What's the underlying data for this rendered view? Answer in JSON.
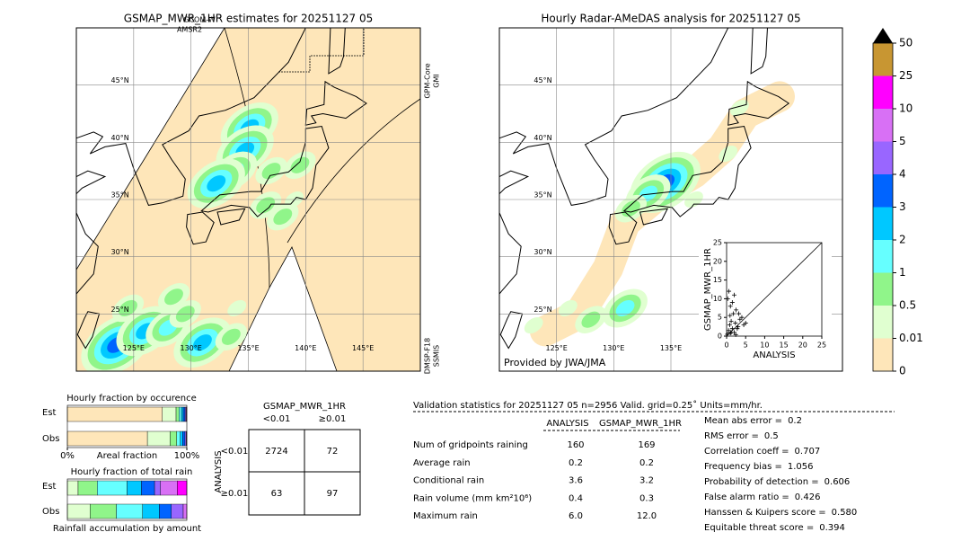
{
  "chart_data": [
    {
      "type": "map",
      "title": "GSMAP_MWR_1HR estimates for 20251127 05",
      "xlim": [
        120,
        150
      ],
      "ylim": [
        20,
        50
      ],
      "xticks": [
        {
          "value": 125,
          "label": "125°E"
        },
        {
          "value": 130,
          "label": "130°E"
        },
        {
          "value": 135,
          "label": "135°E"
        },
        {
          "value": 140,
          "label": "140°E"
        },
        {
          "value": 145,
          "label": "145°E"
        }
      ],
      "yticks": [
        {
          "value": 25,
          "label": "25°N"
        },
        {
          "value": 30,
          "label": "30°N"
        },
        {
          "value": 35,
          "label": "35°N"
        },
        {
          "value": 40,
          "label": "40°N"
        },
        {
          "value": 45,
          "label": "45°N"
        }
      ],
      "annotations": [
        "GCOM-W",
        "AMSR2",
        "GPM-Core",
        "GMI",
        "DMSP-F18",
        "SSMIS"
      ]
    },
    {
      "type": "map",
      "title": "Hourly Radar-AMeDAS analysis for 20251127 05",
      "xlim": [
        120,
        150
      ],
      "ylim": [
        20,
        50
      ],
      "xticks": [
        {
          "value": 125,
          "label": "125°E"
        },
        {
          "value": 130,
          "label": "130°E"
        },
        {
          "value": 135,
          "label": "135°E"
        }
      ],
      "yticks": [
        {
          "value": 25,
          "label": "25°N"
        },
        {
          "value": 30,
          "label": "30°N"
        },
        {
          "value": 35,
          "label": "35°N"
        },
        {
          "value": 40,
          "label": "40°N"
        },
        {
          "value": 45,
          "label": "45°N"
        }
      ],
      "annotations": [
        "Provided by JWA/JMA"
      ]
    },
    {
      "type": "colorbar",
      "bounds": [
        0,
        0.01,
        0.5,
        1,
        2,
        3,
        4,
        5,
        10,
        25,
        50
      ],
      "colors": [
        "#fee6b9",
        "#e0ffd0",
        "#90f58a",
        "#66ffff",
        "#00c8ff",
        "#0064ff",
        "#9966ff",
        "#d870f5",
        "#ff00ff",
        "#c89632"
      ],
      "extend_color": "#000000"
    },
    {
      "type": "scatter",
      "xlabel": "ANALYSIS",
      "ylabel": "GSMAP_MWR_1HR",
      "xlim": [
        0,
        25
      ],
      "ylim": [
        0,
        25
      ],
      "xticks": [
        0,
        5,
        10,
        15,
        20,
        25
      ],
      "yticks": [
        0,
        5,
        10,
        15,
        20,
        25
      ],
      "color": "#000000",
      "x": [
        0.2,
        0.5,
        0.8,
        1,
        1.2,
        1.5,
        1.8,
        2,
        2.3,
        2.5,
        3,
        3.5,
        4,
        4.5,
        0.3,
        0.6,
        1,
        1.5,
        2,
        2.8,
        3.2,
        5,
        1.2,
        2.4,
        0.9
      ],
      "y": [
        0.5,
        1.5,
        3,
        0.8,
        4,
        2,
        6,
        1,
        3.5,
        7,
        2.5,
        4.5,
        5,
        3,
        10,
        12,
        8,
        9,
        11,
        2,
        6,
        3.5,
        1,
        0.4,
        5.5
      ]
    },
    {
      "type": "stacked-barh",
      "title": "Hourly fraction by occurence",
      "xlabel": "Areal fraction",
      "categories": [
        "Est",
        "Obs"
      ],
      "xlim": [
        0,
        100
      ],
      "xticks": [
        {
          "value": 0,
          "label": "0%"
        },
        {
          "value": 100,
          "label": "100%"
        }
      ],
      "series": [
        {
          "color": "#fee6b9",
          "values": [
            79.5,
            67
          ]
        },
        {
          "color": "#e0ffd0",
          "values": [
            11.5,
            19
          ]
        },
        {
          "color": "#90f58a",
          "values": [
            2.5,
            5.5
          ]
        },
        {
          "color": "#66ffff",
          "values": [
            2,
            3
          ]
        },
        {
          "color": "#00c8ff",
          "values": [
            1.5,
            2
          ]
        },
        {
          "color": "#0064ff",
          "values": [
            1.5,
            2
          ]
        },
        {
          "color": "#9966ff",
          "values": [
            0.8,
            1
          ]
        },
        {
          "color": "#d870f5",
          "values": [
            0.5,
            0.5
          ]
        },
        {
          "color": "#ff00ff",
          "values": [
            0.2,
            0
          ]
        },
        {
          "color": "#c89632",
          "values": [
            0,
            0
          ]
        }
      ]
    },
    {
      "type": "stacked-barh",
      "title": "Hourly fraction of total rain",
      "xlabel": "Rainfall accumulation by amount",
      "categories": [
        "Est",
        "Obs"
      ],
      "xlim": [
        0,
        100
      ],
      "series": [
        {
          "color": "#fee6b9",
          "values": [
            0,
            0
          ]
        },
        {
          "color": "#e0ffd0",
          "values": [
            9,
            19
          ]
        },
        {
          "color": "#90f58a",
          "values": [
            16,
            22
          ]
        },
        {
          "color": "#66ffff",
          "values": [
            25,
            22
          ]
        },
        {
          "color": "#00c8ff",
          "values": [
            12,
            14
          ]
        },
        {
          "color": "#0064ff",
          "values": [
            11,
            10
          ]
        },
        {
          "color": "#9966ff",
          "values": [
            5,
            10
          ]
        },
        {
          "color": "#d870f5",
          "values": [
            14,
            3
          ]
        },
        {
          "color": "#ff00ff",
          "values": [
            8,
            0
          ]
        },
        {
          "color": "#c89632",
          "values": [
            0,
            0
          ]
        }
      ]
    }
  ],
  "contingency_table": {
    "title": "GSMAP_MWR_1HR",
    "columns": [
      "<0.01",
      "≥0.01"
    ],
    "row_title": "ANALYSIS",
    "rows": [
      {
        "label": "<0.01",
        "cells": [
          2724,
          72
        ]
      },
      {
        "label": "≥0.01",
        "cells": [
          63,
          97
        ]
      }
    ]
  },
  "validation": {
    "title": "Validation statistics for 20251127 05  n=2956 Valid. grid=0.25˚ Units=mm/hr.",
    "columns": [
      "ANALYSIS",
      "GSMAP_MWR_1HR"
    ],
    "rows": [
      {
        "label": "Num of gridpoints raining",
        "values": [
          "160",
          "169"
        ]
      },
      {
        "label": "Average rain",
        "values": [
          "0.2",
          "0.2"
        ]
      },
      {
        "label": "Conditional rain",
        "values": [
          "3.6",
          "3.2"
        ]
      },
      {
        "label": "Rain volume (mm km²10⁶)",
        "values": [
          "0.4",
          "0.3"
        ]
      },
      {
        "label": "Maximum rain",
        "values": [
          "6.0",
          "12.0"
        ]
      }
    ],
    "scores": [
      {
        "label": "Mean abs error =",
        "value": "0.2"
      },
      {
        "label": "RMS error =",
        "value": "0.5"
      },
      {
        "label": "Correlation coeff =",
        "value": "0.707"
      },
      {
        "label": "Frequency bias =",
        "value": "1.056"
      },
      {
        "label": "Probability of detection =",
        "value": "0.606"
      },
      {
        "label": "False alarm ratio =",
        "value": "0.426"
      },
      {
        "label": "Hanssen & Kuipers score =",
        "value": "0.580"
      },
      {
        "label": "Equitable threat score =",
        "value": "0.394"
      }
    ]
  }
}
